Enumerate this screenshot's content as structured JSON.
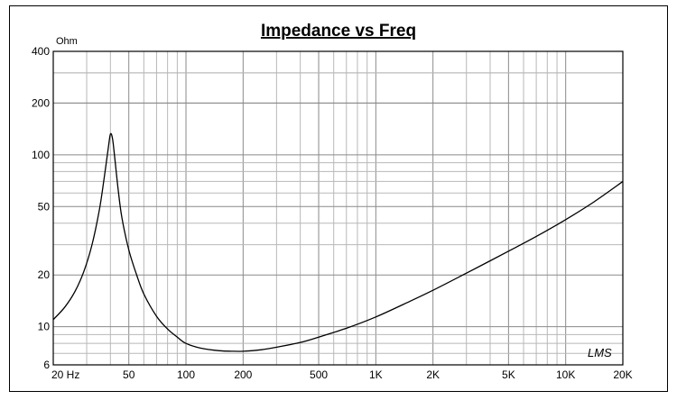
{
  "chart_data": {
    "type": "line",
    "title": "Impedance vs Freq",
    "ylabel": "Ohm",
    "xlabel": "",
    "xscale": "log",
    "yscale": "log",
    "xlim": [
      20,
      20000
    ],
    "ylim": [
      6,
      400
    ],
    "grid": true,
    "x_tick_labels": [
      {
        "value": 20,
        "label": "20  Hz"
      },
      {
        "value": 50,
        "label": "50"
      },
      {
        "value": 100,
        "label": "100"
      },
      {
        "value": 200,
        "label": "200"
      },
      {
        "value": 500,
        "label": "500"
      },
      {
        "value": 1000,
        "label": "1K"
      },
      {
        "value": 2000,
        "label": "2K"
      },
      {
        "value": 5000,
        "label": "5K"
      },
      {
        "value": 10000,
        "label": "10K"
      },
      {
        "value": 20000,
        "label": "20K"
      }
    ],
    "y_tick_labels": [
      {
        "value": 400,
        "label": "400"
      },
      {
        "value": 200,
        "label": "200"
      },
      {
        "value": 100,
        "label": "100"
      },
      {
        "value": 50,
        "label": "50"
      },
      {
        "value": 20,
        "label": "20"
      },
      {
        "value": 10,
        "label": "10"
      },
      {
        "value": 6,
        "label": "6"
      }
    ],
    "series": [
      {
        "color": "#000000",
        "x": [
          20,
          23,
          26,
          29,
          32,
          35,
          37,
          39,
          40,
          41,
          42,
          44,
          46,
          50,
          55,
          60,
          70,
          80,
          90,
          100,
          120,
          150,
          180,
          200,
          250,
          300,
          400,
          500,
          700,
          1000,
          1500,
          2000,
          3000,
          5000,
          7000,
          10000,
          14000,
          20000
        ],
        "y": [
          11,
          13,
          16,
          21,
          30,
          48,
          72,
          110,
          132,
          125,
          100,
          62,
          43,
          28,
          20,
          15.5,
          11.5,
          9.7,
          8.7,
          8.0,
          7.5,
          7.25,
          7.2,
          7.2,
          7.35,
          7.6,
          8.1,
          8.7,
          9.8,
          11.4,
          14,
          16.3,
          20.5,
          27.5,
          33.5,
          42,
          53,
          70
        ]
      }
    ]
  },
  "signature": "LMS"
}
